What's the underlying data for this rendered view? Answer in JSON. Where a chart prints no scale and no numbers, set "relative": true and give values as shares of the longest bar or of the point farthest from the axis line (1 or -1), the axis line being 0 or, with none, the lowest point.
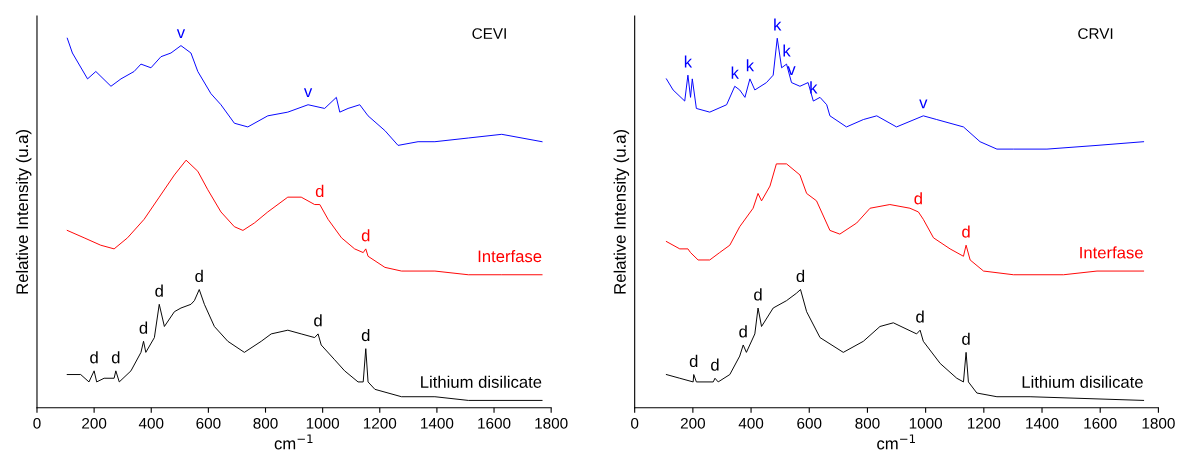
{
  "chart_data": [
    {
      "type": "line",
      "relative": true,
      "xlabel": "cm$^{−1}$",
      "ylabel": "Relative Intensity (u.a)",
      "xlim": [
        0,
        1800
      ],
      "xticks": [
        0,
        200,
        400,
        600,
        800,
        1000,
        1200,
        1400,
        1600,
        1800
      ],
      "tick_labels": "x",
      "grid": false,
      "legend": false,
      "series": [
        {
          "color": "#0000ff",
          "x": [
            106,
            124,
            177,
            206,
            259,
            294,
            340,
            364,
            399,
            434,
            469,
            504,
            539,
            563,
            609,
            644,
            691,
            738,
            808,
            878,
            949,
            1007,
            1048,
            1060,
            1089,
            1130,
            1159,
            1218,
            1264,
            1334,
            1393,
            1510,
            1627,
            1768
          ],
          "values": [
            1.0,
            0.96,
            0.89,
            0.91,
            0.87,
            0.89,
            0.91,
            0.93,
            0.92,
            0.95,
            0.96,
            0.98,
            0.96,
            0.91,
            0.85,
            0.82,
            0.77,
            0.76,
            0.79,
            0.8,
            0.82,
            0.81,
            0.84,
            0.8,
            0.81,
            0.82,
            0.79,
            0.75,
            0.71,
            0.72,
            0.72,
            0.73,
            0.74,
            0.72
          ]
        },
        {
          "name": "Interfase",
          "color": "#ff0000",
          "x": [
            106,
            165,
            223,
            270,
            317,
            375,
            428,
            481,
            522,
            563,
            598,
            644,
            691,
            721,
            761,
            808,
            878,
            925,
            972,
            990,
            1019,
            1066,
            1112,
            1142,
            1151,
            1159,
            1218,
            1276,
            1393,
            1510,
            1627,
            1768
          ],
          "values": [
            0.48,
            0.46,
            0.44,
            0.43,
            0.46,
            0.51,
            0.57,
            0.63,
            0.67,
            0.64,
            0.59,
            0.53,
            0.49,
            0.48,
            0.5,
            0.53,
            0.57,
            0.57,
            0.55,
            0.55,
            0.51,
            0.46,
            0.43,
            0.42,
            0.43,
            0.41,
            0.38,
            0.37,
            0.37,
            0.36,
            0.36,
            0.36
          ]
        },
        {
          "name": "Lithium disilicate",
          "color": "#000000",
          "x": [
            106,
            153,
            182,
            200,
            209,
            235,
            270,
            276,
            288,
            329,
            364,
            373,
            381,
            411,
            428,
            446,
            481,
            504,
            539,
            551,
            568,
            586,
            621,
            668,
            726,
            785,
            820,
            878,
            925,
            972,
            984,
            995,
            1042,
            1077,
            1124,
            1142,
            1151,
            1159,
            1183,
            1276,
            1393,
            1510,
            1768
          ],
          "values": [
            0.09,
            0.09,
            0.07,
            0.1,
            0.07,
            0.08,
            0.08,
            0.1,
            0.07,
            0.1,
            0.15,
            0.18,
            0.15,
            0.19,
            0.28,
            0.22,
            0.26,
            0.27,
            0.28,
            0.29,
            0.32,
            0.28,
            0.22,
            0.18,
            0.15,
            0.18,
            0.2,
            0.21,
            0.2,
            0.19,
            0.2,
            0.17,
            0.13,
            0.1,
            0.07,
            0.07,
            0.16,
            0.07,
            0.05,
            0.03,
            0.03,
            0.02,
            0.02
          ]
        }
      ],
      "annotations": [
        "CEVI",
        {
          "text": "v",
          "x": 504,
          "y": 0.98
        },
        {
          "text": "v",
          "x": 949,
          "y": 0.82
        },
        {
          "text": "d",
          "x": 990,
          "y": 0.55
        },
        {
          "text": "d",
          "x": 1151,
          "y": 0.43
        },
        {
          "text": "d",
          "x": 200,
          "y": 0.1
        },
        {
          "text": "d",
          "x": 276,
          "y": 0.1
        },
        {
          "text": "d",
          "x": 373,
          "y": 0.18
        },
        {
          "text": "d",
          "x": 428,
          "y": 0.28
        },
        {
          "text": "d",
          "x": 568,
          "y": 0.32
        },
        {
          "text": "d",
          "x": 984,
          "y": 0.2
        },
        {
          "text": "d",
          "x": 1151,
          "y": 0.16
        }
      ]
    },
    {
      "type": "line",
      "relative": true,
      "xlabel": "cm$^{−1}$",
      "ylabel": "Relative Intensity (u.a)",
      "xlim": [
        0,
        1800
      ],
      "xticks": [
        0,
        200,
        400,
        600,
        800,
        1000,
        1200,
        1400,
        1600,
        1800
      ],
      "tick_labels": "x",
      "grid": false,
      "legend": false,
      "series": [
        {
          "color": "#0000ff",
          "x": [
            109,
            132,
            172,
            183,
            192,
            198,
            212,
            258,
            316,
            344,
            361,
            379,
            396,
            413,
            453,
            476,
            490,
            505,
            522,
            539,
            568,
            596,
            614,
            637,
            660,
            671,
            728,
            786,
            832,
            900,
            992,
            1038,
            1130,
            1187,
            1245,
            1302,
            1417,
            1589,
            1749
          ],
          "values": [
            0.89,
            0.86,
            0.83,
            0.9,
            0.84,
            0.89,
            0.81,
            0.8,
            0.82,
            0.87,
            0.86,
            0.84,
            0.89,
            0.86,
            0.88,
            0.9,
            1.0,
            0.92,
            0.93,
            0.88,
            0.87,
            0.88,
            0.83,
            0.84,
            0.82,
            0.79,
            0.76,
            0.78,
            0.79,
            0.76,
            0.79,
            0.78,
            0.76,
            0.72,
            0.7,
            0.7,
            0.7,
            0.71,
            0.72
          ]
        },
        {
          "name": "Interfase",
          "color": "#ff0000",
          "x": [
            109,
            155,
            183,
            192,
            218,
            258,
            292,
            327,
            361,
            407,
            424,
            436,
            465,
            487,
            522,
            568,
            591,
            625,
            671,
            705,
            763,
            809,
            877,
            946,
            975,
            992,
            1027,
            1084,
            1130,
            1139,
            1153,
            1199,
            1302,
            1474,
            1589,
            1749
          ],
          "values": [
            0.45,
            0.43,
            0.43,
            0.42,
            0.4,
            0.4,
            0.42,
            0.44,
            0.49,
            0.54,
            0.58,
            0.56,
            0.6,
            0.66,
            0.66,
            0.63,
            0.58,
            0.56,
            0.48,
            0.47,
            0.5,
            0.54,
            0.55,
            0.54,
            0.53,
            0.51,
            0.46,
            0.43,
            0.41,
            0.44,
            0.4,
            0.37,
            0.36,
            0.36,
            0.37,
            0.37
          ]
        },
        {
          "name": "Lithium disilicate",
          "color": "#000000",
          "x": [
            109,
            155,
            201,
            203,
            212,
            270,
            276,
            287,
            327,
            361,
            373,
            384,
            413,
            424,
            436,
            476,
            522,
            556,
            570,
            591,
            637,
            717,
            786,
            843,
            889,
            969,
            981,
            992,
            1050,
            1107,
            1130,
            1139,
            1147,
            1176,
            1245,
            1359,
            1749
          ],
          "values": [
            0.09,
            0.08,
            0.07,
            0.09,
            0.07,
            0.07,
            0.08,
            0.07,
            0.09,
            0.14,
            0.17,
            0.15,
            0.2,
            0.27,
            0.22,
            0.27,
            0.29,
            0.31,
            0.32,
            0.26,
            0.19,
            0.15,
            0.18,
            0.22,
            0.23,
            0.2,
            0.21,
            0.18,
            0.12,
            0.08,
            0.07,
            0.15,
            0.07,
            0.04,
            0.03,
            0.03,
            0.02
          ]
        }
      ],
      "annotations": [
        "CRVI",
        {
          "text": "k",
          "x": 183,
          "y": 0.9
        },
        {
          "text": "k",
          "x": 344,
          "y": 0.87
        },
        {
          "text": "k",
          "x": 396,
          "y": 0.89
        },
        {
          "text": "k",
          "x": 490,
          "y": 1.0
        },
        {
          "text": "k",
          "x": 522,
          "y": 0.93
        },
        {
          "text": "k",
          "x": 614,
          "y": 0.83
        },
        {
          "text": "v",
          "x": 539,
          "y": 0.88
        },
        {
          "text": "v",
          "x": 992,
          "y": 0.79
        },
        {
          "text": "d",
          "x": 975,
          "y": 0.53
        },
        {
          "text": "d",
          "x": 1139,
          "y": 0.44
        },
        {
          "text": "d",
          "x": 203,
          "y": 0.09
        },
        {
          "text": "d",
          "x": 276,
          "y": 0.08
        },
        {
          "text": "d",
          "x": 373,
          "y": 0.17
        },
        {
          "text": "d",
          "x": 424,
          "y": 0.27
        },
        {
          "text": "d",
          "x": 570,
          "y": 0.32
        },
        {
          "text": "d",
          "x": 981,
          "y": 0.21
        },
        {
          "text": "d",
          "x": 1139,
          "y": 0.15
        }
      ]
    }
  ]
}
